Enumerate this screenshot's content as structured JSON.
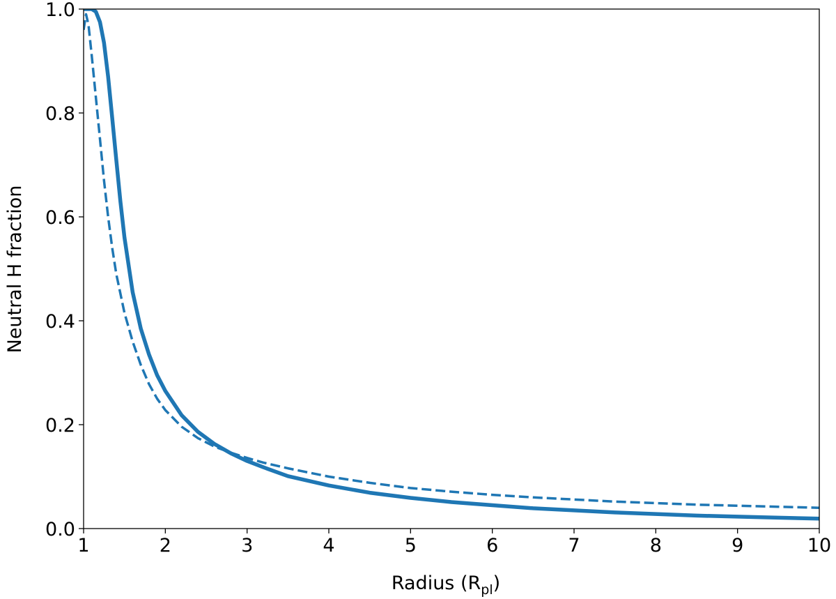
{
  "chart_data": {
    "type": "line",
    "xlabel": {
      "main": "Radius (R",
      "subscript": "pl",
      "close": ")"
    },
    "ylabel": "Neutral H fraction",
    "xlim": [
      1,
      10
    ],
    "ylim": [
      0.0,
      1.0
    ],
    "xticks": [
      1,
      2,
      3,
      4,
      5,
      6,
      7,
      8,
      9,
      10
    ],
    "xtick_labels": [
      "1",
      "2",
      "3",
      "4",
      "5",
      "6",
      "7",
      "8",
      "9",
      "10"
    ],
    "yticks": [
      0.0,
      0.2,
      0.4,
      0.6,
      0.8,
      1.0
    ],
    "ytick_labels": [
      "0.0",
      "0.2",
      "0.4",
      "0.6",
      "0.8",
      "1.0"
    ],
    "grid": false,
    "color": "#1f77b4",
    "series": [
      {
        "style": "solid",
        "x": [
          1.0,
          1.05,
          1.1,
          1.15,
          1.2,
          1.25,
          1.3,
          1.35,
          1.4,
          1.45,
          1.5,
          1.6,
          1.7,
          1.8,
          1.9,
          2.0,
          2.2,
          2.4,
          2.6,
          2.8,
          3.0,
          3.2,
          3.5,
          4.0,
          4.5,
          5.0,
          5.5,
          6.0,
          6.5,
          7.0,
          7.5,
          8.0,
          8.5,
          9.0,
          9.5,
          10.0
        ],
        "y": [
          1.0,
          1.0,
          1.0,
          0.995,
          0.975,
          0.935,
          0.87,
          0.79,
          0.71,
          0.63,
          0.56,
          0.455,
          0.385,
          0.335,
          0.295,
          0.265,
          0.218,
          0.186,
          0.163,
          0.145,
          0.13,
          0.118,
          0.101,
          0.083,
          0.069,
          0.059,
          0.051,
          0.045,
          0.039,
          0.035,
          0.031,
          0.028,
          0.025,
          0.023,
          0.021,
          0.019
        ]
      },
      {
        "style": "dashed",
        "x": [
          1.0,
          1.03,
          1.06,
          1.1,
          1.15,
          1.2,
          1.25,
          1.3,
          1.35,
          1.4,
          1.5,
          1.6,
          1.7,
          1.8,
          1.9,
          2.0,
          2.2,
          2.4,
          2.6,
          2.8,
          3.0,
          3.2,
          3.5,
          4.0,
          4.5,
          5.0,
          5.5,
          6.0,
          6.5,
          7.0,
          7.5,
          8.0,
          8.5,
          9.0,
          9.5,
          10.0
        ],
        "y": [
          0.96,
          0.99,
          0.97,
          0.91,
          0.83,
          0.75,
          0.67,
          0.6,
          0.54,
          0.49,
          0.415,
          0.36,
          0.315,
          0.278,
          0.25,
          0.228,
          0.196,
          0.174,
          0.158,
          0.146,
          0.136,
          0.127,
          0.116,
          0.1,
          0.088,
          0.078,
          0.071,
          0.065,
          0.06,
          0.056,
          0.052,
          0.049,
          0.046,
          0.044,
          0.042,
          0.04
        ]
      }
    ]
  }
}
